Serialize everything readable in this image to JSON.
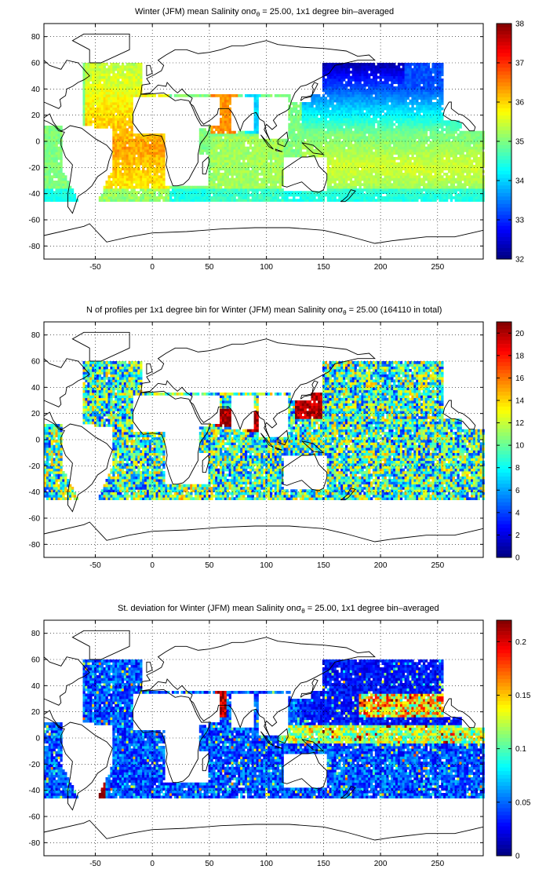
{
  "chart_data": [
    {
      "type": "heatmap",
      "title_prefix": "Winter (JFM) mean Salinity on",
      "title_sigma": "σ",
      "title_sub": "θ",
      "title_suffix": " = 25.00, 1x1 degree bin–averaged",
      "xlim": [
        -95,
        290
      ],
      "ylim": [
        -90,
        90
      ],
      "xticks": [
        -50,
        0,
        50,
        100,
        150,
        200,
        250
      ],
      "yticks": [
        80,
        60,
        40,
        20,
        0,
        -20,
        -40,
        -60,
        -80
      ],
      "grid": true,
      "colorbar": {
        "min": 32,
        "max": 38,
        "ticks": [
          38,
          37,
          36,
          35,
          34,
          33,
          32
        ]
      }
    },
    {
      "type": "heatmap",
      "title_prefix": "N of profiles per 1x1 degree bin for Winter (JFM) mean Salinity on",
      "title_sigma": "σ",
      "title_sub": "θ",
      "title_suffix": " = 25.00 (164110 in total)",
      "xlim": [
        -95,
        290
      ],
      "ylim": [
        -90,
        90
      ],
      "xticks": [
        -50,
        0,
        50,
        100,
        150,
        200,
        250
      ],
      "yticks": [
        80,
        60,
        40,
        20,
        0,
        -20,
        -40,
        -60,
        -80
      ],
      "grid": true,
      "colorbar": {
        "min": 0,
        "max": 21,
        "ticks": [
          20,
          18,
          16,
          14,
          12,
          10,
          8,
          6,
          4,
          2,
          0
        ]
      }
    },
    {
      "type": "heatmap",
      "title_prefix": "St. deviation for Winter (JFM) mean Salinity on",
      "title_sigma": "σ",
      "title_sub": "θ",
      "title_suffix": " = 25.00, 1x1 degree bin–averaged",
      "xlim": [
        -95,
        290
      ],
      "ylim": [
        -90,
        90
      ],
      "xticks": [
        -50,
        0,
        50,
        100,
        150,
        200,
        250
      ],
      "yticks": [
        80,
        60,
        40,
        20,
        0,
        -20,
        -40,
        -60,
        -80
      ],
      "grid": true,
      "colorbar": {
        "min": 0,
        "max": 0.22,
        "ticks": [
          0.2,
          0.15,
          0.1,
          0.05,
          0
        ]
      }
    }
  ]
}
